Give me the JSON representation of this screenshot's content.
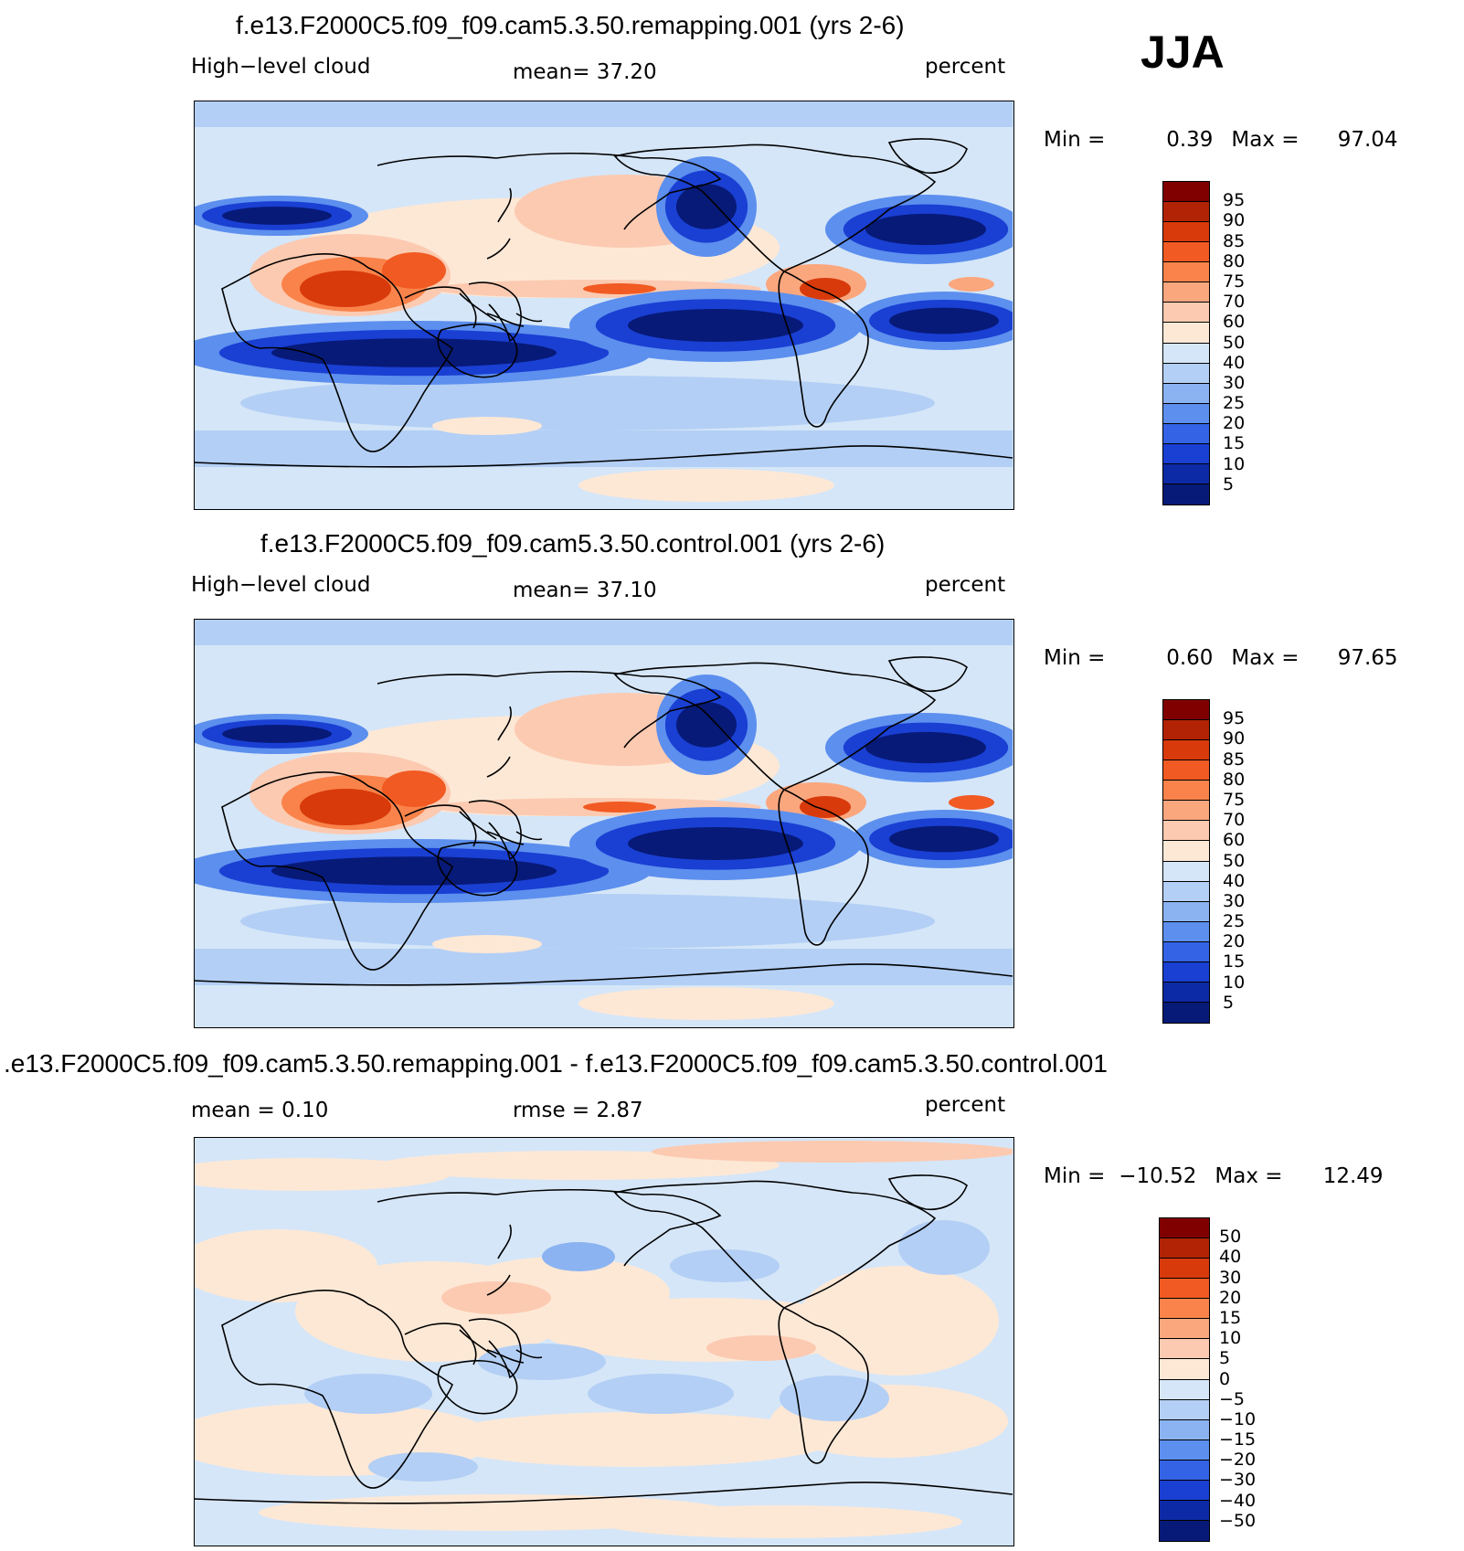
{
  "season": "JJA",
  "panels": [
    {
      "title": "f.e13.F2000C5.f09_f09.cam5.3.50.remapping.001 (yrs 2-6)",
      "left_label": "High−level cloud",
      "center_label": "mean=   37.20",
      "right_label": "percent",
      "min_label": "Min =",
      "min_value": "0.39",
      "max_label": "Max =",
      "max_value": "97.04"
    },
    {
      "title": "f.e13.F2000C5.f09_f09.cam5.3.50.control.001 (yrs 2-6)",
      "left_label": "High−level cloud",
      "center_label": "mean=   37.10",
      "right_label": "percent",
      "min_label": "Min =",
      "min_value": "0.60",
      "max_label": "Max =",
      "max_value": "97.65"
    },
    {
      "title": ".e13.F2000C5.f09_f09.cam5.3.50.remapping.001 - f.e13.F2000C5.f09_f09.cam5.3.50.control.001",
      "left_label": "mean =     0.10",
      "center_label": "rmse =     2.87",
      "right_label": "percent",
      "min_label": "Min =",
      "min_value": "−10.52",
      "max_label": "Max =",
      "max_value": "12.49"
    }
  ],
  "colorbars": {
    "abs_ticks": [
      "95",
      "90",
      "85",
      "80",
      "75",
      "70",
      "60",
      "50",
      "40",
      "30",
      "25",
      "20",
      "15",
      "10",
      "5"
    ],
    "abs_colors": [
      "#800000",
      "#b22306",
      "#d83a0b",
      "#f15a22",
      "#f9834a",
      "#fba77e",
      "#fccab1",
      "#fde8d6",
      "#d5e6f8",
      "#b3cff5",
      "#8bb3f1",
      "#5c8fee",
      "#3463e5",
      "#1a3fd3",
      "#0d2aa6",
      "#071a78"
    ],
    "diff_ticks": [
      "50",
      "40",
      "30",
      "20",
      "15",
      "10",
      "5",
      "0",
      "−5",
      "−10",
      "−15",
      "−20",
      "−30",
      "−40",
      "−50"
    ],
    "diff_colors": [
      "#800000",
      "#b22306",
      "#d83a0b",
      "#f15a22",
      "#f9834a",
      "#fba77e",
      "#fccab1",
      "#fde8d6",
      "#d5e6f8",
      "#b3cff5",
      "#8bb3f1",
      "#5c8fee",
      "#3463e5",
      "#1a3fd3",
      "#0d2aa6",
      "#071a78"
    ]
  },
  "chart_data": [
    {
      "type": "heatmap",
      "title": "f.e13.F2000C5.f09_f09.cam5.3.50.remapping.001 (yrs 2-6)",
      "variable": "High-level cloud",
      "units": "percent",
      "mean": 37.2,
      "min": 0.39,
      "max": 97.04,
      "levels": [
        5,
        10,
        15,
        20,
        25,
        30,
        40,
        50,
        60,
        70,
        75,
        80,
        85,
        90,
        95
      ]
    },
    {
      "type": "heatmap",
      "title": "f.e13.F2000C5.f09_f09.cam5.3.50.control.001 (yrs 2-6)",
      "variable": "High-level cloud",
      "units": "percent",
      "mean": 37.1,
      "min": 0.6,
      "max": 97.65,
      "levels": [
        5,
        10,
        15,
        20,
        25,
        30,
        40,
        50,
        60,
        70,
        75,
        80,
        85,
        90,
        95
      ]
    },
    {
      "type": "heatmap",
      "title": ".e13.F2000C5.f09_f09.cam5.3.50.remapping.001 - f.e13.F2000C5.f09_f09.cam5.3.50.control.001",
      "units": "percent",
      "mean": 0.1,
      "rmse": 2.87,
      "min": -10.52,
      "max": 12.49,
      "levels": [
        -50,
        -40,
        -30,
        -20,
        -15,
        -10,
        -5,
        0,
        5,
        10,
        15,
        20,
        30,
        40,
        50
      ]
    }
  ]
}
